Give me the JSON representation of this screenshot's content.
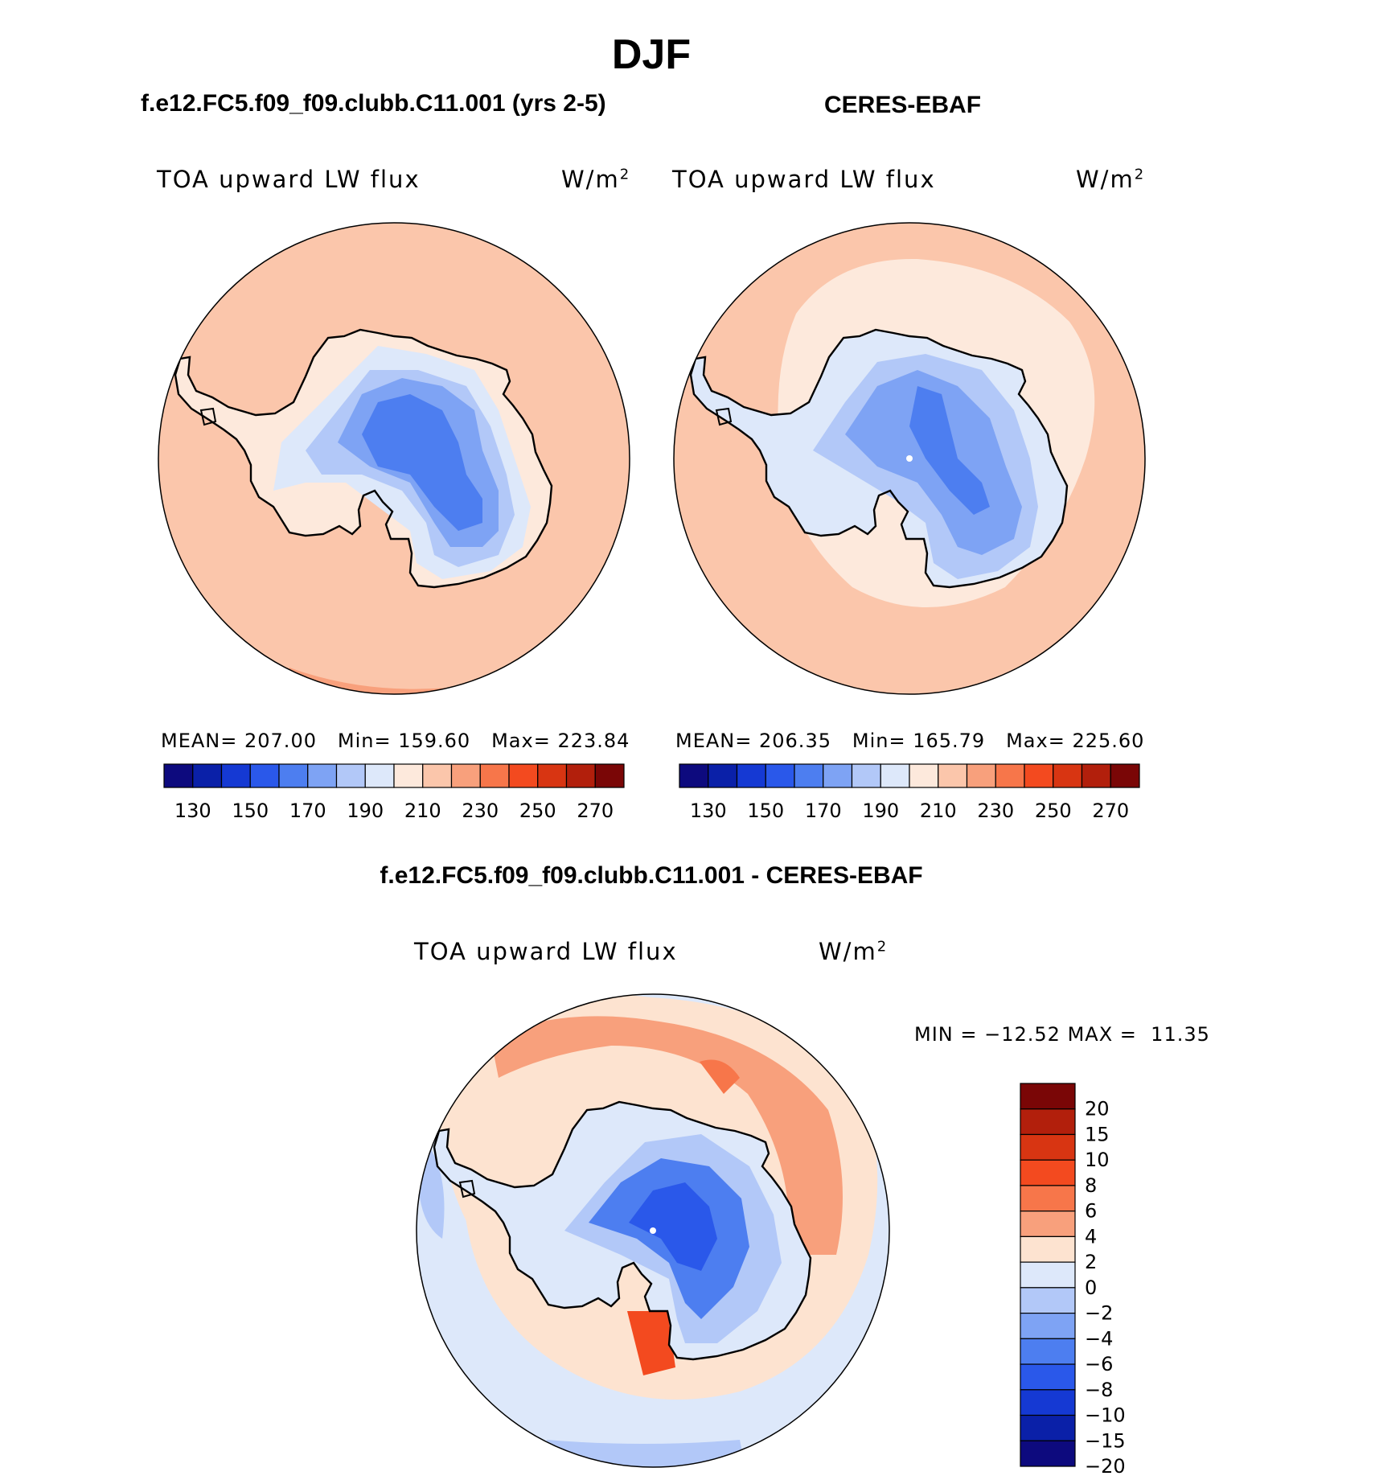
{
  "title": "DJF",
  "chart_data": [
    {
      "type": "heatmap",
      "projection": "south polar stereographic",
      "title": "f.e12.FC5.f09_f09.clubb.C11.001 (yrs 2-5)",
      "variable": "TOA upward LW flux",
      "units": "W/m",
      "units_exp": "2",
      "stats": {
        "mean_label": "MEAN=",
        "mean": "207.00",
        "min_label": "Min=",
        "min": "159.60",
        "max_label": "Max=",
        "max": "223.84"
      },
      "colorbar": {
        "levels": [
          130,
          140,
          150,
          160,
          170,
          180,
          190,
          200,
          210,
          220,
          230,
          240,
          250,
          260,
          270
        ],
        "tick_labels": [
          "130",
          "150",
          "170",
          "190",
          "210",
          "230",
          "250",
          "270"
        ],
        "orientation": "horizontal"
      }
    },
    {
      "type": "heatmap",
      "projection": "south polar stereographic",
      "title": "CERES-EBAF",
      "variable": "TOA upward LW flux",
      "units": "W/m",
      "units_exp": "2",
      "stats": {
        "mean_label": "MEAN=",
        "mean": "206.35",
        "min_label": "Min=",
        "min": "165.79",
        "max_label": "Max=",
        "max": "225.60"
      },
      "colorbar": {
        "levels": [
          130,
          140,
          150,
          160,
          170,
          180,
          190,
          200,
          210,
          220,
          230,
          240,
          250,
          260,
          270
        ],
        "tick_labels": [
          "130",
          "150",
          "170",
          "190",
          "210",
          "230",
          "250",
          "270"
        ],
        "orientation": "horizontal"
      }
    },
    {
      "type": "heatmap",
      "projection": "south polar stereographic",
      "title": "f.e12.FC5.f09_f09.clubb.C11.001 - CERES-EBAF",
      "variable": "TOA upward LW flux",
      "units": "W/m",
      "units_exp": "2",
      "stats": {
        "min_label": "MIN =",
        "min": "−12.52",
        "max_label": "MAX =",
        "max": "11.35"
      },
      "colorbar": {
        "levels": [
          20,
          15,
          10,
          8,
          6,
          4,
          2,
          0,
          -2,
          -4,
          -6,
          -8,
          -10,
          -15,
          -20
        ],
        "tick_labels": [
          "20",
          "15",
          "10",
          "8",
          "6",
          "4",
          "2",
          "0",
          "−2",
          "−4",
          "−6",
          "−8",
          "−10",
          "−15",
          "−20"
        ],
        "orientation": "vertical"
      }
    }
  ],
  "colors": {
    "abs_palette": [
      "#0d0a7e",
      "#0a20a8",
      "#1539d3",
      "#2a58ea",
      "#4d7ef0",
      "#7ea3f4",
      "#b2c8f8",
      "#dde8fa",
      "#fde9dc",
      "#fbc6ab",
      "#f8a07c",
      "#f7764a",
      "#f34a1f",
      "#d83512",
      "#b21f0c",
      "#7a0606"
    ],
    "diff_palette": [
      "#7a0606",
      "#b21f0c",
      "#d83512",
      "#f34a1f",
      "#f7764a",
      "#f8a07c",
      "#fde3d0",
      "#dde8fa",
      "#b2c8f8",
      "#7ea3f4",
      "#4d7ef0",
      "#2a58ea",
      "#1539d3",
      "#0a20a8",
      "#0d0a7e"
    ]
  }
}
